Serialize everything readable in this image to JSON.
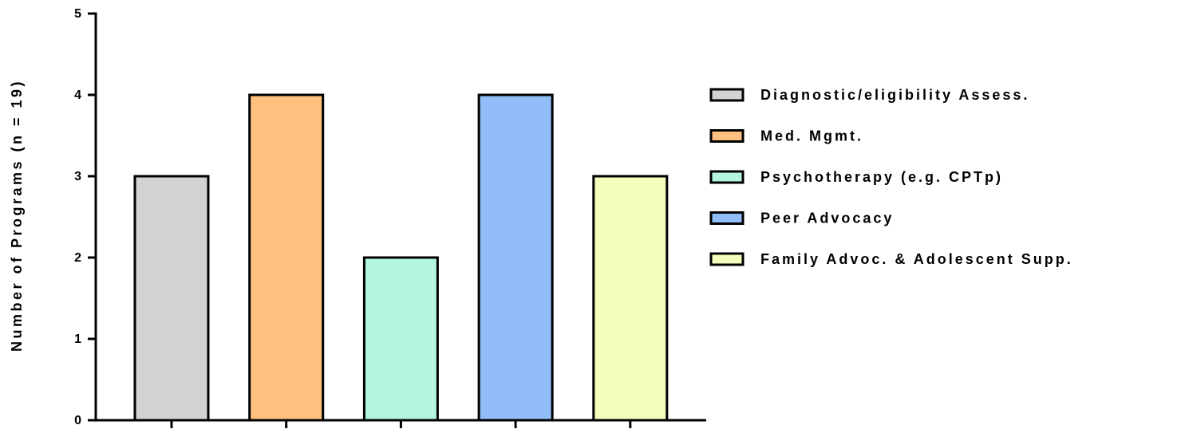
{
  "chart_data": {
    "type": "bar",
    "ylabel": "Number of Programs (n = 19)",
    "categories": [
      "Diagnostic/eligibility Assess.",
      "Med. Mgmt.",
      "Psychotherapy (e.g. CPTp)",
      "Peer Advocacy",
      "Family Advoc. & Adolescent Supp."
    ],
    "values": [
      3,
      4,
      2,
      4,
      3
    ],
    "colors": [
      "#d3d3d3",
      "#ffc080",
      "#b3f5e0",
      "#91bdf8",
      "#f4fdbb"
    ],
    "ylim": [
      0,
      5
    ],
    "yticks": [
      0,
      1,
      2,
      3,
      4,
      5
    ],
    "legend": "right"
  }
}
